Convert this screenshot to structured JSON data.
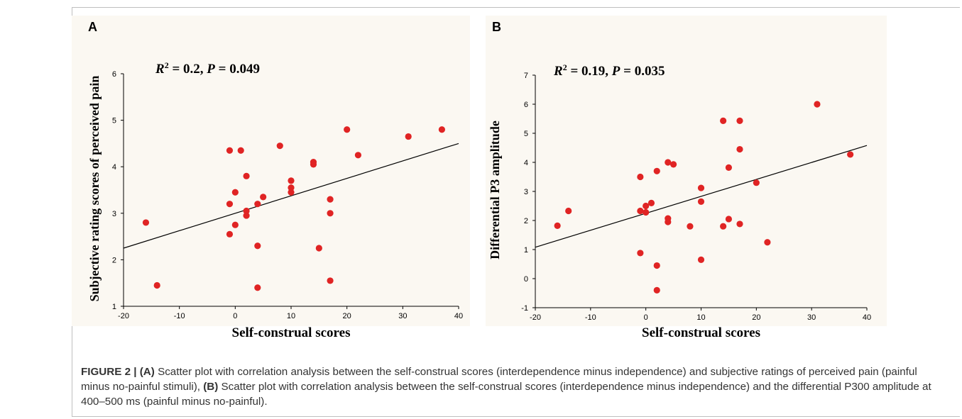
{
  "figure": {
    "caption_label": "FIGURE 2 |",
    "caption_parts": [
      {
        "bold": true,
        "text": "(A)"
      },
      {
        "bold": false,
        "text": " Scatter plot with correlation analysis between the self-construal scores (interdependence minus independence) and subjective ratings of perceived pain (painful minus no-painful stimuli), "
      },
      {
        "bold": true,
        "text": "(B)"
      },
      {
        "bold": false,
        "text": " Scatter plot with correlation analysis between the self-construal scores (interdependence minus independence) and the differential P300 amplitude at 400–500 ms (painful minus no-painful)."
      }
    ]
  },
  "colors": {
    "point": "#e02424",
    "line": "#000000",
    "panel_bg": "#fbf8f2",
    "border": "#bfbfbf"
  },
  "chart_data": [
    {
      "panel": "A",
      "type": "scatter",
      "annotation": {
        "r2_label": "R",
        "r2_sup": "2",
        "r2_value": " = 0.2, ",
        "p_label": "P",
        "p_value": " = 0.049"
      },
      "xlabel": "Self-construal scores",
      "ylabel": "Subjective rating scores of perceived pain",
      "xlim": [
        -20,
        40
      ],
      "ylim": [
        1,
        6
      ],
      "xticks": [
        -20,
        -10,
        0,
        10,
        20,
        30,
        40
      ],
      "yticks": [
        1,
        2,
        3,
        4,
        5,
        6
      ],
      "fit_line": [
        [
          -20,
          2.25
        ],
        [
          40,
          4.5
        ]
      ],
      "points": [
        [
          -16,
          2.8
        ],
        [
          -14,
          1.45
        ],
        [
          -1,
          4.35
        ],
        [
          1,
          4.35
        ],
        [
          -1,
          3.2
        ],
        [
          0,
          3.45
        ],
        [
          -1,
          2.55
        ],
        [
          0,
          2.75
        ],
        [
          2,
          3.8
        ],
        [
          2,
          3.05
        ],
        [
          2,
          2.95
        ],
        [
          4,
          3.2
        ],
        [
          5,
          3.35
        ],
        [
          4,
          2.3
        ],
        [
          4,
          1.4
        ],
        [
          8,
          4.45
        ],
        [
          10,
          3.7
        ],
        [
          10,
          3.55
        ],
        [
          10,
          3.45
        ],
        [
          14,
          4.1
        ],
        [
          14,
          4.05
        ],
        [
          15,
          2.25
        ],
        [
          17,
          3.3
        ],
        [
          17,
          3.0
        ],
        [
          17,
          1.55
        ],
        [
          20,
          4.8
        ],
        [
          22,
          4.25
        ],
        [
          31,
          4.65
        ],
        [
          37,
          4.8
        ]
      ]
    },
    {
      "panel": "B",
      "type": "scatter",
      "annotation": {
        "r2_label": "R",
        "r2_sup": "2",
        "r2_value": " = 0.19, ",
        "p_label": "P",
        "p_value": " = 0.035"
      },
      "xlabel": "Self-construal scores",
      "ylabel": "Differential P3 amplitude",
      "xlim": [
        -20,
        40
      ],
      "ylim": [
        -1,
        7
      ],
      "xticks": [
        -20,
        -10,
        0,
        10,
        20,
        30,
        40
      ],
      "yticks": [
        -1,
        0,
        1,
        2,
        3,
        4,
        5,
        6,
        7
      ],
      "fit_line": [
        [
          -20,
          1.08
        ],
        [
          40,
          4.58
        ]
      ],
      "points": [
        [
          -16,
          1.82
        ],
        [
          -14,
          2.33
        ],
        [
          -1,
          3.5
        ],
        [
          -1,
          2.33
        ],
        [
          -1,
          0.88
        ],
        [
          0,
          2.5
        ],
        [
          0,
          2.28
        ],
        [
          1,
          2.6
        ],
        [
          2,
          3.7
        ],
        [
          2,
          0.45
        ],
        [
          2,
          -0.4
        ],
        [
          4,
          4.0
        ],
        [
          5,
          3.93
        ],
        [
          4,
          2.07
        ],
        [
          4,
          1.95
        ],
        [
          8,
          1.8
        ],
        [
          10,
          3.12
        ],
        [
          10,
          2.65
        ],
        [
          10,
          0.65
        ],
        [
          14,
          5.43
        ],
        [
          14,
          1.8
        ],
        [
          15,
          3.82
        ],
        [
          15,
          2.05
        ],
        [
          17,
          5.43
        ],
        [
          17,
          4.45
        ],
        [
          17,
          1.88
        ],
        [
          20,
          3.3
        ],
        [
          22,
          1.25
        ],
        [
          31,
          6.0
        ],
        [
          37,
          4.27
        ]
      ]
    }
  ]
}
